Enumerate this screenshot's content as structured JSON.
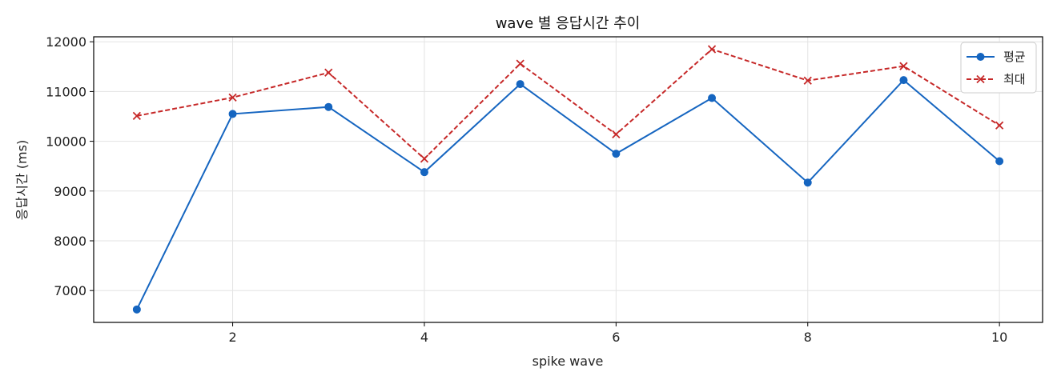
{
  "chart_data": {
    "type": "line",
    "title": "wave 별 응답시간 추이",
    "xlabel": "spike wave",
    "ylabel": "응답시간 (ms)",
    "x": [
      1,
      2,
      3,
      4,
      5,
      6,
      7,
      8,
      9,
      10
    ],
    "xticks": [
      2,
      4,
      6,
      8,
      10
    ],
    "yticks": [
      7000,
      8000,
      9000,
      10000,
      11000,
      12000
    ],
    "xlim": [
      0.55,
      10.45
    ],
    "ylim": [
      6360,
      12100
    ],
    "grid": true,
    "legend_position": "top-right",
    "series": [
      {
        "name": "평균",
        "color": "#1565c0",
        "line_style": "solid",
        "marker": "circle",
        "values": [
          6620,
          10550,
          10690,
          9380,
          11150,
          9750,
          10870,
          9170,
          11230,
          9600
        ]
      },
      {
        "name": "최대",
        "color": "#c62828",
        "line_style": "dashed",
        "marker": "x",
        "values": [
          10510,
          10880,
          11380,
          9650,
          11560,
          10140,
          11850,
          11220,
          11510,
          10320
        ]
      }
    ]
  }
}
